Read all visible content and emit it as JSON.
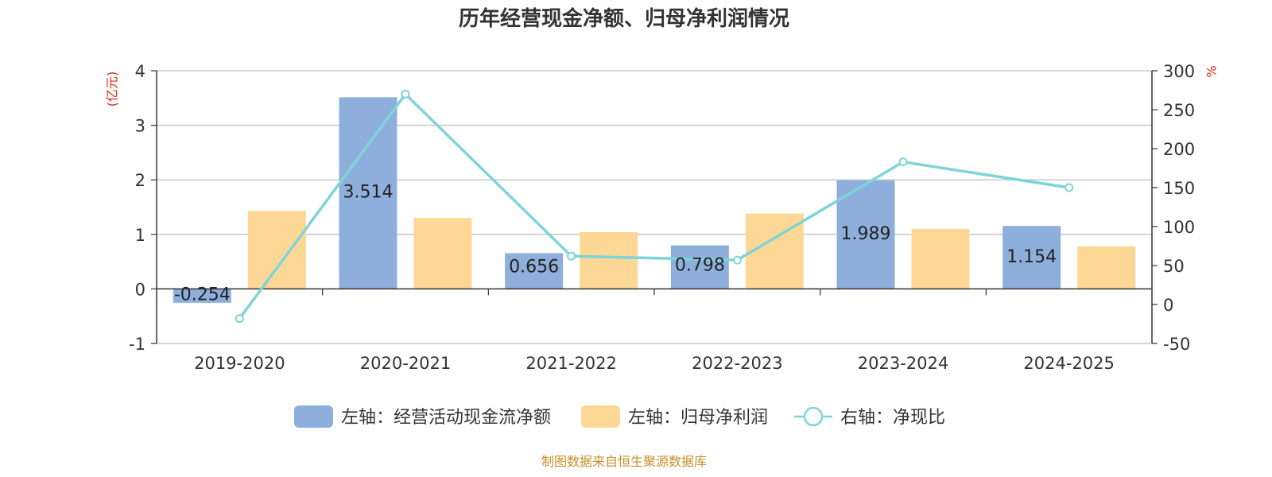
{
  "chart_data": {
    "type": "bar",
    "title": "历年经营现金净额、归母净利润情况",
    "categories": [
      "2019-2020",
      "2020-2021",
      "2021-2022",
      "2022-2023",
      "2023-2024",
      "2024-2025"
    ],
    "left_axis": {
      "unit": "(亿元)",
      "ylim": [
        -1,
        4
      ],
      "ticks": [
        "-1",
        "0",
        "1",
        "2",
        "3",
        "4"
      ]
    },
    "right_axis": {
      "unit": "%",
      "ylim": [
        -50,
        300
      ],
      "ticks": [
        "-50",
        "0",
        "50",
        "100",
        "150",
        "200",
        "250",
        "300"
      ]
    },
    "grid": true,
    "legend_position": "bottom",
    "series": [
      {
        "name": "左轴：经营活动现金流净额",
        "type": "bar",
        "axis": "left",
        "color": "#8eaedb",
        "values": [
          -0.254,
          3.514,
          0.656,
          0.798,
          1.989,
          1.154
        ],
        "labels": [
          "-0.254",
          "3.514",
          "0.656",
          "0.798",
          "1.989",
          "1.154"
        ]
      },
      {
        "name": "左轴：归母净利润",
        "type": "bar",
        "axis": "left",
        "color": "#fdd795",
        "values": [
          1.43,
          1.3,
          1.04,
          1.38,
          1.1,
          0.78
        ]
      },
      {
        "name": "右轴：净现比",
        "type": "line",
        "axis": "right",
        "color": "#7fd4d8",
        "values": [
          -18,
          270,
          62,
          57,
          183,
          150
        ]
      }
    ],
    "source": "制图数据来自恒生聚源数据库"
  }
}
